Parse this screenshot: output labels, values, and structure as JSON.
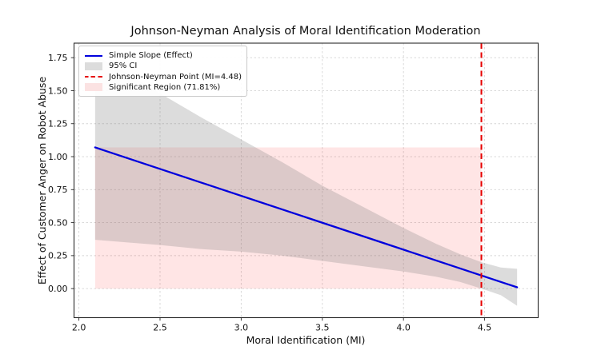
{
  "figure_title": "Johnson-Neyman Analysis of Moral Identification Moderation",
  "legend": [
    {
      "label": "Simple Slope (Effect)",
      "swatch": "blue-line"
    },
    {
      "label": "95% CI",
      "swatch": "gray-patch"
    },
    {
      "label": "Johnson-Neyman Point (MI=4.48)",
      "swatch": "red-dashed-line"
    },
    {
      "label": "Significant Region (71.81%)",
      "swatch": "pink-patch"
    }
  ],
  "colors": {
    "simple_slope": "#0000dd",
    "ci_band": "rgba(128,128,128,0.28)",
    "jn_line": "#e60000",
    "significant_region": "rgba(255,0,0,0.10)",
    "gridline": "#d5d5d5",
    "spine": "#2a2a2a",
    "text": "#111111",
    "background": "#ffffff"
  },
  "chart_data": {
    "type": "line",
    "title": "Johnson-Neyman Analysis of Moral Identification Moderation",
    "xlabel": "Moral Identification (MI)",
    "ylabel": "Effect of Customer Anger on Robot Abuse",
    "xlim": [
      1.97,
      4.83
    ],
    "ylim": [
      -0.22,
      1.86
    ],
    "xticks": [
      2.0,
      2.5,
      3.0,
      3.5,
      4.0,
      4.5
    ],
    "yticks": [
      0.0,
      0.25,
      0.5,
      0.75,
      1.0,
      1.25,
      1.5,
      1.75
    ],
    "grid": true,
    "legend_position": "upper-left",
    "series": [
      {
        "name": "Simple Slope (Effect)",
        "type": "line",
        "x": [
          2.1,
          4.7
        ],
        "y": [
          1.07,
          0.01
        ]
      }
    ],
    "ci_band": {
      "name": "95% CI",
      "x": [
        2.1,
        2.3,
        2.5,
        2.75,
        3.0,
        3.25,
        3.5,
        3.75,
        4.0,
        4.2,
        4.35,
        4.48,
        4.6,
        4.7
      ],
      "upper": [
        1.77,
        1.63,
        1.48,
        1.3,
        1.13,
        0.96,
        0.78,
        0.62,
        0.46,
        0.34,
        0.26,
        0.2,
        0.16,
        0.15
      ],
      "lower": [
        0.37,
        0.35,
        0.33,
        0.3,
        0.28,
        0.25,
        0.21,
        0.17,
        0.13,
        0.09,
        0.05,
        0.0,
        -0.05,
        -0.13
      ]
    },
    "jn_point": {
      "name": "Johnson-Neyman Point (MI=4.48)",
      "mi": 4.48
    },
    "significant_region": {
      "name": "Significant Region (71.81%)",
      "x_range": [
        2.1,
        4.48
      ],
      "y_range": [
        0.0,
        1.07
      ],
      "coverage_percent": 71.81
    }
  }
}
